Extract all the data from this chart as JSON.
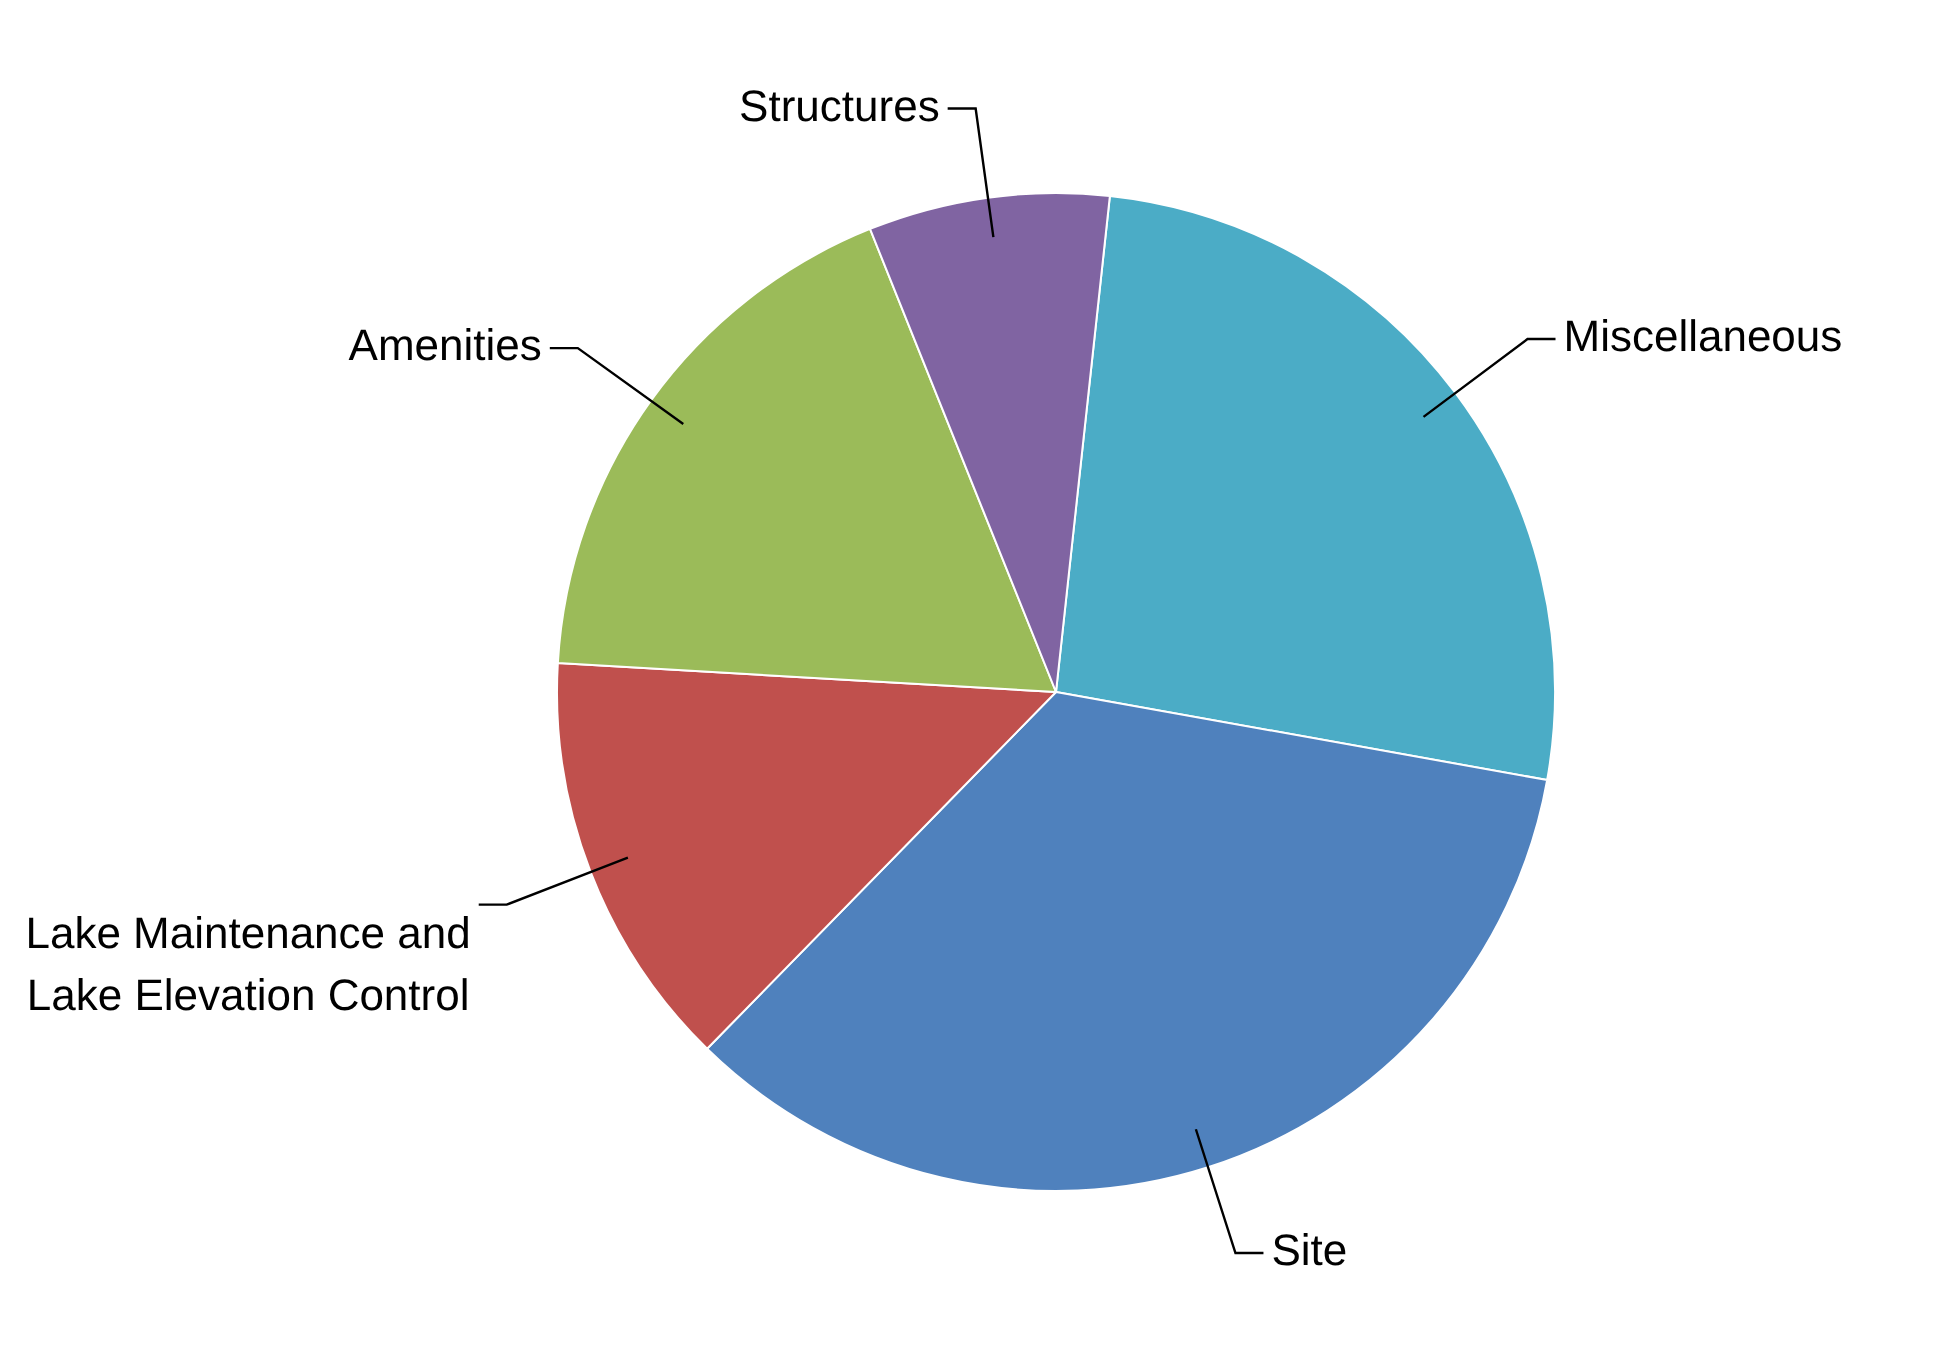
{
  "chart_data": {
    "type": "pie",
    "categories": [
      "Miscellaneous",
      "Site",
      "Lake Maintenance and Lake Elevation Control",
      "Amenities",
      "Structures"
    ],
    "values": [
      26.1,
      34.5,
      13.6,
      18.0,
      7.8
    ],
    "colors": [
      "#4bacc6",
      "#4f81bd",
      "#c0504d",
      "#9bbb59",
      "#8064a2"
    ],
    "legend": false
  }
}
